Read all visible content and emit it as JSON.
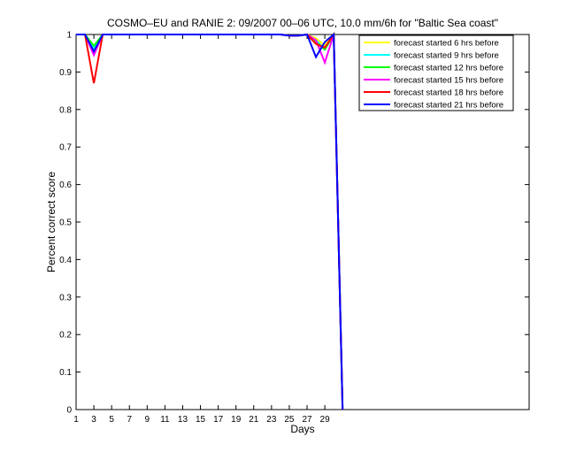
{
  "chart_data": {
    "type": "line",
    "title": "COSMO–EU and RANIE 2: 09/2007 00–06 UTC, 10.0 mm/6h for \"Baltic Sea coast\"",
    "xlabel": "Days",
    "ylabel": "Percent correct score",
    "xlim": [
      1,
      52
    ],
    "ylim": [
      0,
      1
    ],
    "xticks": [
      1,
      3,
      5,
      7,
      9,
      11,
      13,
      15,
      17,
      19,
      21,
      23,
      25,
      27,
      29
    ],
    "yticks": [
      0,
      0.1,
      0.2,
      0.3,
      0.4,
      0.5,
      0.6,
      0.7,
      0.8,
      0.9,
      1
    ],
    "ytick_labels": [
      "0",
      "0.1",
      "0.2",
      "0.3",
      "0.4",
      "0.5",
      "0.6",
      "0.7",
      "0.8",
      "0.9",
      "1"
    ],
    "grid": false,
    "legend_position": "top-right",
    "x": [
      1,
      2,
      3,
      4,
      5,
      6,
      7,
      8,
      9,
      10,
      11,
      12,
      13,
      14,
      15,
      16,
      17,
      18,
      19,
      20,
      21,
      22,
      23,
      24,
      25,
      26,
      27,
      28,
      29,
      30,
      31
    ],
    "series": [
      {
        "name": "forecast started 6 hrs before",
        "color": "#ffff00",
        "values": [
          1,
          1,
          0.96,
          1,
          1,
          1,
          1,
          1,
          1,
          1,
          1,
          1,
          1,
          1,
          1,
          1,
          1,
          1,
          1,
          1,
          1,
          1,
          1,
          1,
          0.997,
          0.997,
          1,
          0.99,
          0.97,
          1,
          0
        ]
      },
      {
        "name": "forecast started 9 hrs before",
        "color": "#00ffff",
        "values": [
          1,
          1,
          0.965,
          1,
          1,
          1,
          1,
          1,
          1,
          1,
          1,
          1,
          1,
          1,
          1,
          1,
          1,
          1,
          1,
          1,
          1,
          1,
          1,
          1,
          0.997,
          0.997,
          1,
          0.985,
          0.96,
          1,
          0
        ]
      },
      {
        "name": "forecast started 12 hrs before",
        "color": "#00ff00",
        "values": [
          1,
          1,
          0.97,
          1,
          1,
          1,
          1,
          1,
          1,
          1,
          1,
          1,
          1,
          1,
          1,
          1,
          1,
          1,
          1,
          1,
          1,
          1,
          1,
          1,
          0.997,
          0.997,
          1,
          0.98,
          0.96,
          1,
          0
        ]
      },
      {
        "name": "forecast started 15 hrs before",
        "color": "#ff00ff",
        "values": [
          1,
          1,
          0.945,
          1,
          1,
          1,
          1,
          1,
          1,
          1,
          1,
          1,
          1,
          1,
          1,
          1,
          1,
          1,
          1,
          1,
          1,
          1,
          1,
          1,
          0.997,
          0.997,
          1,
          0.985,
          0.925,
          1,
          0
        ]
      },
      {
        "name": "forecast started 18 hrs before",
        "color": "#ff0000",
        "values": [
          1,
          1,
          0.87,
          1,
          1,
          1,
          1,
          1,
          1,
          1,
          1,
          1,
          1,
          1,
          1,
          1,
          1,
          1,
          1,
          1,
          1,
          1,
          1,
          1,
          0.997,
          0.997,
          1,
          0.975,
          0.965,
          1,
          0
        ]
      },
      {
        "name": "forecast started 21 hrs before",
        "color": "#0000ff",
        "values": [
          1,
          1,
          0.955,
          1,
          1,
          1,
          1,
          1,
          1,
          1,
          1,
          1,
          1,
          1,
          1,
          1,
          1,
          1,
          1,
          1,
          1,
          1,
          1,
          1,
          0.997,
          0.997,
          1,
          0.94,
          0.98,
          1,
          0
        ]
      }
    ]
  }
}
